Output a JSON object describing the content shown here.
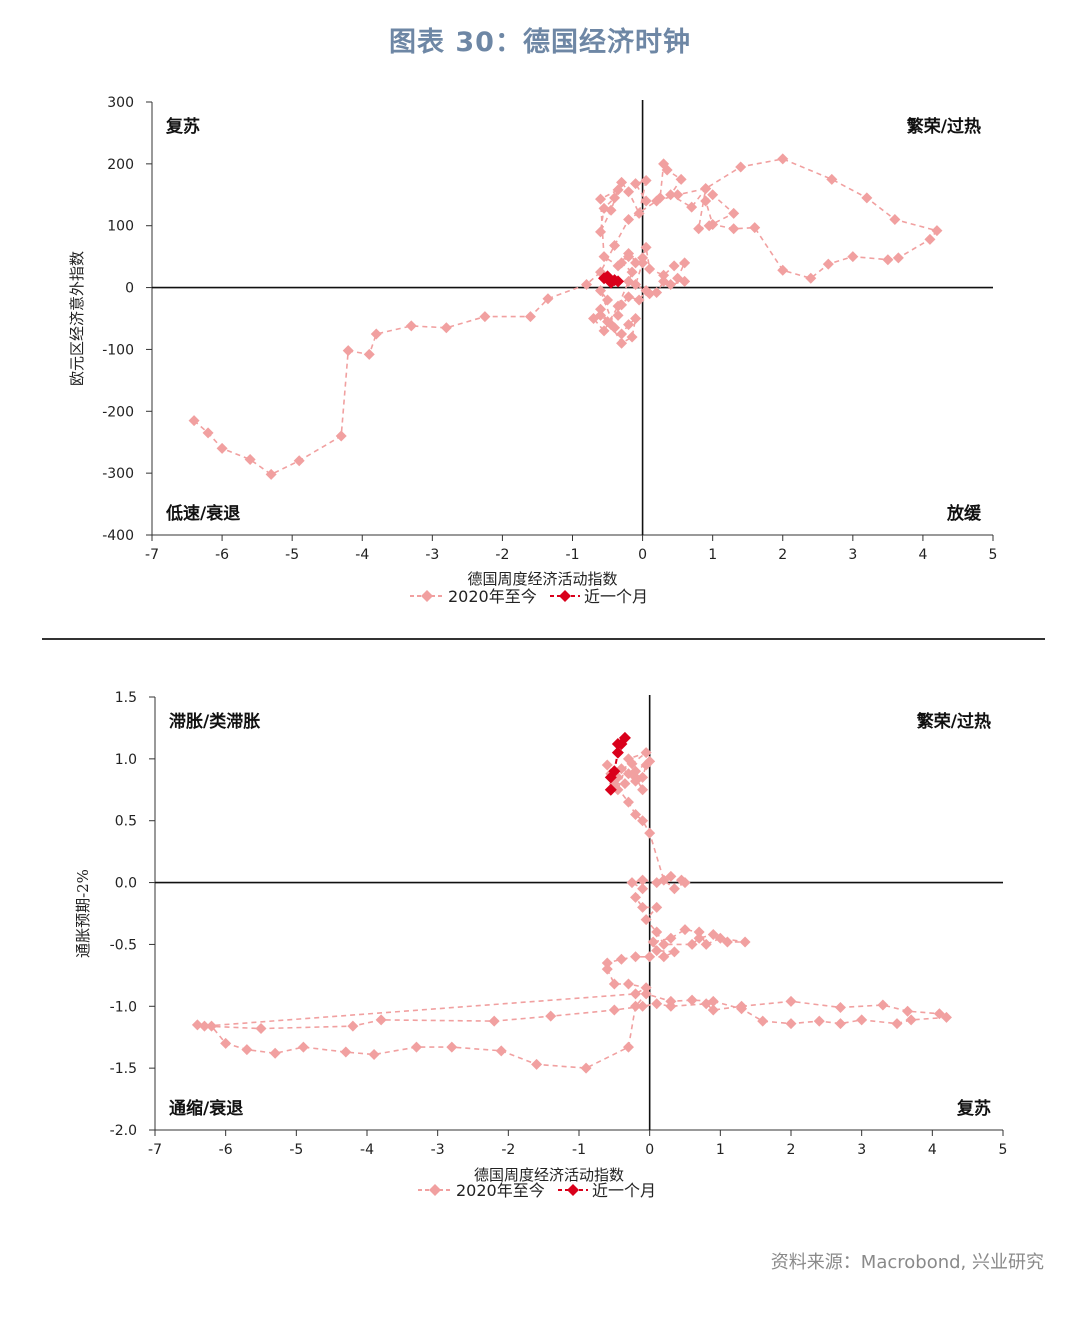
{
  "title": "图表 30：德国经济时钟",
  "source": "资料来源：Macrobond, 兴业研究",
  "colors": {
    "history": "#f1a0a0",
    "recent": "#d9001b",
    "title": "#6e87a5"
  },
  "chart_data": [
    {
      "type": "scatter",
      "xlabel": "德国周度经济活动指数",
      "ylabel": "欧元区经济意外指数",
      "xlim": [
        -7,
        5
      ],
      "ylim": [
        -400,
        300
      ],
      "xticks": [
        "-7",
        "-6",
        "-5",
        "-4",
        "-3",
        "-2",
        "-1",
        "0",
        "1",
        "2",
        "3",
        "4",
        "5"
      ],
      "yticks": [
        "300",
        "200",
        "100",
        "0",
        "-100",
        "-200",
        "-300",
        "-400"
      ],
      "quadrants": {
        "top_left": "复苏",
        "top_right": "繁荣/过热",
        "bottom_left": "低速/衰退",
        "bottom_right": "放缓"
      },
      "legend": [
        "2020年至今",
        "近一个月"
      ],
      "series": [
        {
          "name": "2020年至今",
          "style": "dashed-diamond",
          "points": [
            [
              -6.4,
              -215
            ],
            [
              -6.2,
              -235
            ],
            [
              -6,
              -260
            ],
            [
              -5.6,
              -278
            ],
            [
              -5.3,
              -302
            ],
            [
              -4.9,
              -280
            ],
            [
              -4.3,
              -240
            ],
            [
              -4.2,
              -102
            ],
            [
              -3.9,
              -108
            ],
            [
              -3.8,
              -75
            ],
            [
              -3.3,
              -62
            ],
            [
              -2.8,
              -65
            ],
            [
              -2.25,
              -47
            ],
            [
              -1.6,
              -47
            ],
            [
              -1.35,
              -18
            ],
            [
              -0.8,
              5
            ],
            [
              -0.6,
              25
            ],
            [
              -0.4,
              68
            ],
            [
              -0.2,
              110
            ],
            [
              0.2,
              140
            ],
            [
              0.5,
              150
            ],
            [
              0.9,
              160
            ],
            [
              1.4,
              195
            ],
            [
              2,
              208
            ],
            [
              2.7,
              175
            ],
            [
              3.2,
              145
            ],
            [
              3.6,
              110
            ],
            [
              4.2,
              92
            ],
            [
              4.1,
              78
            ],
            [
              3.65,
              48
            ],
            [
              3.5,
              45
            ],
            [
              3,
              50
            ],
            [
              2.65,
              38
            ],
            [
              2.4,
              15
            ],
            [
              2,
              28
            ],
            [
              1.6,
              97
            ],
            [
              1.3,
              95
            ],
            [
              1,
              102
            ],
            [
              0.9,
              140
            ],
            [
              1,
              150
            ],
            [
              1.3,
              120
            ],
            [
              0.95,
              100
            ],
            [
              0.8,
              95
            ],
            [
              0.9,
              160
            ],
            [
              0.7,
              130
            ],
            [
              0.4,
              150
            ],
            [
              0.55,
              175
            ],
            [
              0.35,
              190
            ],
            [
              0.3,
              200
            ],
            [
              0.25,
              145
            ],
            [
              0.05,
              140
            ],
            [
              -0.1,
              168
            ],
            [
              0.05,
              173
            ],
            [
              -0.05,
              120
            ],
            [
              -0.2,
              155
            ],
            [
              -0.3,
              170
            ],
            [
              -0.4,
              145
            ],
            [
              -0.55,
              128
            ],
            [
              -0.6,
              90
            ],
            [
              -0.45,
              125
            ],
            [
              -0.35,
              158
            ],
            [
              -0.6,
              143
            ],
            [
              -0.55,
              50
            ],
            [
              -0.35,
              35
            ],
            [
              -0.2,
              55
            ],
            [
              -0.1,
              40
            ],
            [
              0,
              48
            ],
            [
              0.05,
              65
            ],
            [
              0.1,
              30
            ],
            [
              0.3,
              20
            ],
            [
              0.45,
              35
            ],
            [
              0.6,
              40
            ],
            [
              0.5,
              15
            ],
            [
              0.6,
              10
            ],
            [
              0.4,
              5
            ],
            [
              0.3,
              10
            ],
            [
              0.2,
              -8
            ],
            [
              0.05,
              -5
            ],
            [
              -0.05,
              -20
            ],
            [
              -0.2,
              -15
            ],
            [
              -0.3,
              -28
            ],
            [
              -0.35,
              -45
            ],
            [
              -0.5,
              -55
            ],
            [
              -0.6,
              -35
            ],
            [
              -0.5,
              -20
            ],
            [
              -0.6,
              -5
            ],
            [
              -0.4,
              -65
            ],
            [
              -0.3,
              -75
            ],
            [
              -0.2,
              -60
            ],
            [
              -0.1,
              -50
            ],
            [
              -0.15,
              -80
            ],
            [
              -0.3,
              -90
            ],
            [
              -0.45,
              -60
            ],
            [
              -0.6,
              -45
            ],
            [
              -0.7,
              -50
            ],
            [
              -0.55,
              -70
            ],
            [
              -0.35,
              -30
            ],
            [
              -0.2,
              10
            ],
            [
              -0.15,
              25
            ],
            [
              -0.3,
              40
            ],
            [
              -0.2,
              50
            ],
            [
              0,
              40
            ],
            [
              -0.1,
              5
            ],
            [
              0.1,
              -10
            ]
          ]
        },
        {
          "name": "近一个月",
          "style": "dashed-diamond",
          "points": [
            [
              -0.55,
              15
            ],
            [
              -0.45,
              8
            ],
            [
              -0.5,
              18
            ],
            [
              -0.4,
              12
            ],
            [
              -0.35,
              10
            ]
          ]
        }
      ]
    },
    {
      "type": "scatter",
      "xlabel": "德国周度经济活动指数",
      "ylabel": "通胀预期-2%",
      "xlim": [
        -7,
        5
      ],
      "ylim": [
        -2.0,
        1.5
      ],
      "xticks": [
        "-7",
        "-6",
        "-5",
        "-4",
        "-3",
        "-2",
        "-1",
        "0",
        "1",
        "2",
        "3",
        "4",
        "5"
      ],
      "yticks": [
        "1.5",
        "1.0",
        "0.5",
        "0.0",
        "-0.5",
        "-1.0",
        "-1.5",
        "-2.0"
      ],
      "quadrants": {
        "top_left": "滞胀/类滞胀",
        "top_right": "繁荣/过热",
        "bottom_left": "通缩/衰退",
        "bottom_right": "复苏"
      },
      "legend": [
        "2020年至今",
        "近一个月"
      ],
      "series": [
        {
          "name": "2020年至今",
          "style": "dashed-diamond",
          "points": [
            [
              -6.4,
              -1.15
            ],
            [
              -6.2,
              -1.16
            ],
            [
              -6,
              -1.3
            ],
            [
              -5.7,
              -1.35
            ],
            [
              -5.3,
              -1.38
            ],
            [
              -4.9,
              -1.33
            ],
            [
              -4.3,
              -1.37
            ],
            [
              -3.9,
              -1.39
            ],
            [
              -3.3,
              -1.33
            ],
            [
              -2.8,
              -1.33
            ],
            [
              -2.1,
              -1.36
            ],
            [
              -1.6,
              -1.47
            ],
            [
              -0.9,
              -1.5
            ],
            [
              -0.3,
              -1.33
            ],
            [
              -0.2,
              -1.0
            ],
            [
              -0.05,
              -0.9
            ],
            [
              0.3,
              -0.96
            ],
            [
              0.6,
              -0.95
            ],
            [
              0.9,
              -0.96
            ],
            [
              1.3,
              -1.02
            ],
            [
              1.6,
              -1.12
            ],
            [
              2,
              -1.14
            ],
            [
              2.4,
              -1.12
            ],
            [
              2.7,
              -1.14
            ],
            [
              3,
              -1.11
            ],
            [
              3.5,
              -1.14
            ],
            [
              3.7,
              -1.11
            ],
            [
              4.2,
              -1.09
            ],
            [
              4.1,
              -1.06
            ],
            [
              3.65,
              -1.04
            ],
            [
              3.3,
              -0.99
            ],
            [
              2.7,
              -1.01
            ],
            [
              2,
              -0.96
            ],
            [
              1.3,
              -1.0
            ],
            [
              0.9,
              -1.03
            ],
            [
              0.8,
              -0.98
            ],
            [
              0.3,
              -1.0
            ],
            [
              0.1,
              -0.98
            ],
            [
              -0.1,
              -1.0
            ],
            [
              -0.5,
              -1.03
            ],
            [
              -1.4,
              -1.08
            ],
            [
              -2.2,
              -1.12
            ],
            [
              -3.8,
              -1.11
            ],
            [
              -4.2,
              -1.16
            ],
            [
              -5.5,
              -1.18
            ],
            [
              -6.3,
              -1.16
            ],
            [
              -0.2,
              -0.9
            ],
            [
              -0.05,
              -0.85
            ],
            [
              -0.3,
              -0.82
            ],
            [
              -0.5,
              -0.82
            ],
            [
              -0.6,
              -0.7
            ],
            [
              -0.6,
              -0.65
            ],
            [
              -0.4,
              -0.62
            ],
            [
              -0.2,
              -0.6
            ],
            [
              0,
              -0.6
            ],
            [
              0.2,
              -0.6
            ],
            [
              0.35,
              -0.56
            ],
            [
              0.1,
              -0.55
            ],
            [
              0.05,
              -0.48
            ],
            [
              0.3,
              -0.45
            ],
            [
              0.5,
              -0.38
            ],
            [
              0.7,
              -0.4
            ],
            [
              0.8,
              -0.5
            ],
            [
              1,
              -0.45
            ],
            [
              1.35,
              -0.48
            ],
            [
              1.1,
              -0.48
            ],
            [
              0.9,
              -0.42
            ],
            [
              0.7,
              -0.45
            ],
            [
              0.6,
              -0.5
            ],
            [
              0.2,
              -0.5
            ],
            [
              0.1,
              -0.4
            ],
            [
              -0.05,
              -0.3
            ],
            [
              0.1,
              -0.2
            ],
            [
              -0.1,
              -0.2
            ],
            [
              -0.2,
              -0.12
            ],
            [
              -0.1,
              -0.05
            ],
            [
              -0.25,
              0
            ],
            [
              -0.1,
              0.02
            ],
            [
              0.1,
              0.0
            ],
            [
              0.3,
              0.05
            ],
            [
              0.45,
              0.02
            ],
            [
              0.5,
              0.0
            ],
            [
              0.35,
              -0.05
            ],
            [
              0.2,
              0.02
            ],
            [
              0,
              0.4
            ],
            [
              -0.1,
              0.5
            ],
            [
              -0.2,
              0.55
            ],
            [
              -0.3,
              0.65
            ],
            [
              -0.5,
              0.8
            ],
            [
              -0.35,
              0.8
            ],
            [
              -0.2,
              0.82
            ],
            [
              -0.1,
              0.85
            ],
            [
              -0.05,
              0.95
            ],
            [
              0,
              0.98
            ],
            [
              -0.2,
              0.9
            ],
            [
              -0.3,
              0.88
            ],
            [
              -0.45,
              0.85
            ],
            [
              -0.6,
              0.95
            ],
            [
              -0.55,
              0.88
            ],
            [
              -0.4,
              0.92
            ],
            [
              -0.2,
              0.85
            ],
            [
              -0.1,
              0.75
            ],
            [
              -0.25,
              0.96
            ],
            [
              -0.05,
              1.05
            ],
            [
              -0.3,
              1.0
            ],
            [
              -0.45,
              0.75
            ]
          ]
        },
        {
          "name": "近一个月",
          "style": "dashed-diamond",
          "points": [
            [
              -0.55,
              0.75
            ],
            [
              -0.55,
              0.85
            ],
            [
              -0.5,
              0.9
            ],
            [
              -0.45,
              1.05
            ],
            [
              -0.4,
              1.12
            ],
            [
              -0.35,
              1.17
            ],
            [
              -0.45,
              1.12
            ]
          ]
        }
      ]
    }
  ]
}
